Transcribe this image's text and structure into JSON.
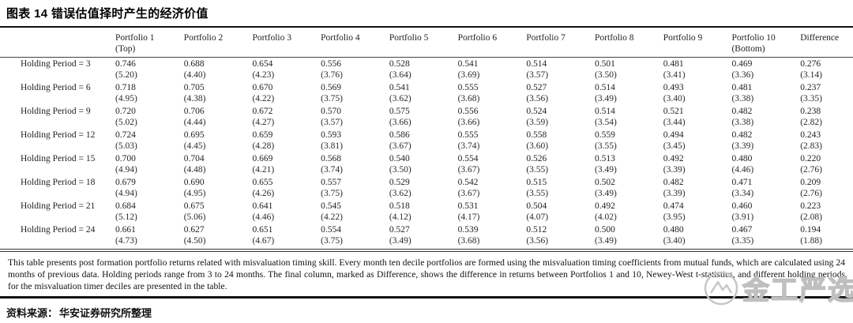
{
  "title": "图表 14 错误估值择时产生的经济价值",
  "table": {
    "columns": [
      {
        "line1": "",
        "line2": ""
      },
      {
        "line1": "Portfolio 1",
        "line2": "(Top)"
      },
      {
        "line1": "Portfolio 2",
        "line2": ""
      },
      {
        "line1": "Portfolio 3",
        "line2": ""
      },
      {
        "line1": "Portfolio 4",
        "line2": ""
      },
      {
        "line1": "Portfolio 5",
        "line2": ""
      },
      {
        "line1": "Portfolio 6",
        "line2": ""
      },
      {
        "line1": "Portfolio 7",
        "line2": ""
      },
      {
        "line1": "Portfolio 8",
        "line2": ""
      },
      {
        "line1": "Portfolio 9",
        "line2": ""
      },
      {
        "line1": "Portfolio 10",
        "line2": "(Bottom)"
      },
      {
        "line1": "Difference",
        "line2": ""
      }
    ],
    "rows": [
      {
        "label": "Holding Period = 3",
        "values": [
          "0.746",
          "0.688",
          "0.654",
          "0.556",
          "0.528",
          "0.541",
          "0.514",
          "0.501",
          "0.481",
          "0.469",
          "0.276"
        ],
        "tstats": [
          "(5.20)",
          "(4.40)",
          "(4.23)",
          "(3.76)",
          "(3.64)",
          "(3.69)",
          "(3.57)",
          "(3.50)",
          "(3.41)",
          "(3.36)",
          "(3.14)"
        ]
      },
      {
        "label": "Holding Period = 6",
        "values": [
          "0.718",
          "0.705",
          "0.670",
          "0.569",
          "0.541",
          "0.555",
          "0.527",
          "0.514",
          "0.493",
          "0.481",
          "0.237"
        ],
        "tstats": [
          "(4.95)",
          "(4.38)",
          "(4.22)",
          "(3.75)",
          "(3.62)",
          "(3.68)",
          "(3.56)",
          "(3.49)",
          "(3.40)",
          "(3.38)",
          "(3.35)"
        ]
      },
      {
        "label": "Holding Period = 9",
        "values": [
          "0.720",
          "0.706",
          "0.672",
          "0.570",
          "0.575",
          "0.556",
          "0.524",
          "0.514",
          "0.521",
          "0.482",
          "0.238"
        ],
        "tstats": [
          "(5.02)",
          "(4.44)",
          "(4.27)",
          "(3.57)",
          "(3.66)",
          "(3.66)",
          "(3.59)",
          "(3.54)",
          "(3.44)",
          "(3.38)",
          "(2.82)"
        ]
      },
      {
        "label": "Holding Period = 12",
        "values": [
          "0.724",
          "0.695",
          "0.659",
          "0.593",
          "0.586",
          "0.555",
          "0.558",
          "0.559",
          "0.494",
          "0.482",
          "0.243"
        ],
        "tstats": [
          "(5.03)",
          "(4.45)",
          "(4.28)",
          "(3.81)",
          "(3.67)",
          "(3.74)",
          "(3.60)",
          "(3.55)",
          "(3.45)",
          "(3.39)",
          "(2.83)"
        ]
      },
      {
        "label": "Holding Period = 15",
        "values": [
          "0.700",
          "0.704",
          "0.669",
          "0.568",
          "0.540",
          "0.554",
          "0.526",
          "0.513",
          "0.492",
          "0.480",
          "0.220"
        ],
        "tstats": [
          "(4.94)",
          "(4.48)",
          "(4.21)",
          "(3.74)",
          "(3.50)",
          "(3.67)",
          "(3.55)",
          "(3.49)",
          "(3.39)",
          "(4.46)",
          "(2.76)"
        ]
      },
      {
        "label": "Holding Period = 18",
        "values": [
          "0.679",
          "0.690",
          "0.655",
          "0.557",
          "0.529",
          "0.542",
          "0.515",
          "0.502",
          "0.482",
          "0.471",
          "0.209"
        ],
        "tstats": [
          "(4.94)",
          "(4.95)",
          "(4.26)",
          "(3.75)",
          "(3.62)",
          "(3.67)",
          "(3.55)",
          "(3.49)",
          "(3.39)",
          "(3.34)",
          "(2.76)"
        ]
      },
      {
        "label": "Holding Period = 21",
        "values": [
          "0.684",
          "0.675",
          "0.641",
          "0.545",
          "0.518",
          "0.531",
          "0.504",
          "0.492",
          "0.474",
          "0.460",
          "0.223"
        ],
        "tstats": [
          "(5.12)",
          "(5.06)",
          "(4.46)",
          "(4.22)",
          "(4.12)",
          "(4.17)",
          "(4.07)",
          "(4.02)",
          "(3.95)",
          "(3.91)",
          "(2.08)"
        ]
      },
      {
        "label": "Holding Period = 24",
        "values": [
          "0.661",
          "0.627",
          "0.651",
          "0.554",
          "0.527",
          "0.539",
          "0.512",
          "0.500",
          "0.480",
          "0.467",
          "0.194"
        ],
        "tstats": [
          "(4.73)",
          "(4.50)",
          "(4.67)",
          "(3.75)",
          "(3.49)",
          "(3.68)",
          "(3.56)",
          "(3.49)",
          "(3.40)",
          "(3.35)",
          "(1.88)"
        ]
      }
    ]
  },
  "footnote": "This table presents post formation portfolio returns related with misvaluation timing skill. Every month ten decile portfolios are formed using the misvaluation timing coefficients from mutual funds, which are calculated using 24 months of previous data. Holding periods range from 3 to 24 months. The final column, marked as Difference, shows the difference in returns between Portfolios 1 and 10, Newey-West t-statistics, and different holding periods for the misvaluation timer deciles are presented in the table.",
  "source": {
    "label": "资料来源：",
    "text": "华安证券研究所整理"
  },
  "watermark": {
    "text": "金工严选"
  },
  "colors": {
    "text": "#1a1a1a",
    "rule": "#111111",
    "watermark": "#c7c7c7"
  }
}
